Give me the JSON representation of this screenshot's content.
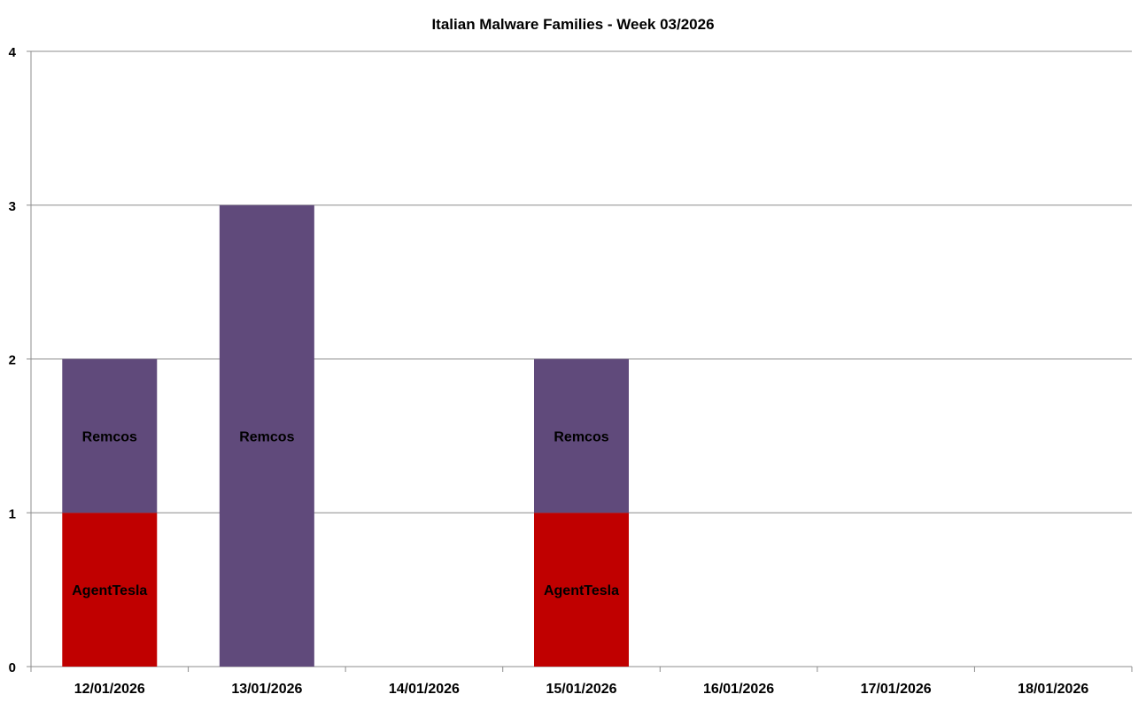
{
  "chart_data": {
    "type": "bar",
    "stacked": true,
    "title": "Italian Malware Families - Week 03/2026",
    "xlabel": "",
    "ylabel": "",
    "categories": [
      "12/01/2026",
      "13/01/2026",
      "14/01/2026",
      "15/01/2026",
      "16/01/2026",
      "17/01/2026",
      "18/01/2026"
    ],
    "ylim": [
      0,
      4
    ],
    "yticks": [
      0,
      1,
      2,
      3,
      4
    ],
    "grid": true,
    "legend": "none",
    "series": [
      {
        "name": "AgentTesla",
        "color": "#C00000",
        "values": [
          1,
          0,
          0,
          1,
          0,
          0,
          0
        ]
      },
      {
        "name": "Remcos",
        "color": "#604A7B",
        "values": [
          1,
          3,
          0,
          1,
          0,
          0,
          0
        ]
      }
    ]
  }
}
